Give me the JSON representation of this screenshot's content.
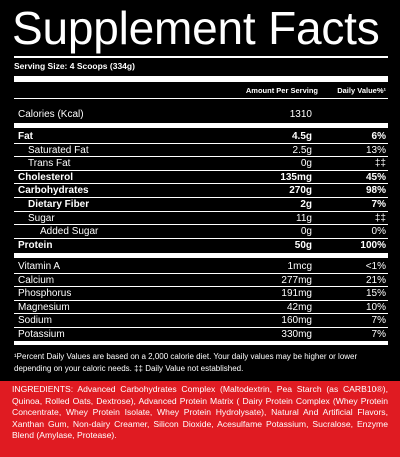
{
  "title": "Supplement Facts",
  "serving_size": "Serving Size: 4 Scoops (334g)",
  "header": {
    "amount": "Amount Per Serving",
    "daily_value": "Daily Value%¹"
  },
  "calories": {
    "label": "Calories (Kcal)",
    "amount": "1310",
    "dv": ""
  },
  "macros": [
    {
      "label": "Fat",
      "amount": "4.5g",
      "dv": "6%",
      "bold": true,
      "indent": 0
    },
    {
      "label": "Saturated Fat",
      "amount": "2.5g",
      "dv": "13%",
      "bold": false,
      "indent": 1
    },
    {
      "label": "Trans Fat",
      "amount": "0g",
      "dv": "‡‡",
      "bold": false,
      "indent": 1
    },
    {
      "label": "Cholesterol",
      "amount": "135mg",
      "dv": "45%",
      "bold": true,
      "indent": 0
    },
    {
      "label": "Carbohydrates",
      "amount": "270g",
      "dv": "98%",
      "bold": true,
      "indent": 0
    },
    {
      "label": "Dietary Fiber",
      "amount": "2g",
      "dv": "7%",
      "bold": true,
      "indent": 1
    },
    {
      "label": "Sugar",
      "amount": "11g",
      "dv": "‡‡",
      "bold": false,
      "indent": 1
    },
    {
      "label": "Added Sugar",
      "amount": "0g",
      "dv": "0%",
      "bold": false,
      "indent": 2
    },
    {
      "label": "Protein",
      "amount": "50g",
      "dv": "100%",
      "bold": true,
      "indent": 0
    }
  ],
  "minerals": [
    {
      "label": "Vitamin A",
      "amount": "1mcg",
      "dv": "<1%"
    },
    {
      "label": "Calcium",
      "amount": "277mg",
      "dv": "21%"
    },
    {
      "label": "Phosphorus",
      "amount": "191mg",
      "dv": "15%"
    },
    {
      "label": "Magnesium",
      "amount": "42mg",
      "dv": "10%"
    },
    {
      "label": "Sodium",
      "amount": "160mg",
      "dv": "7%"
    },
    {
      "label": "Potassium",
      "amount": "330mg",
      "dv": "7%"
    }
  ],
  "footnote": "¹Percent Daily Values are based on a 2,000 calorie diet. Your daily values may be higher or lower depending on your caloric needs. ‡‡ Daily Value not established.",
  "ingredients": {
    "heading": "INGREDIENTS:",
    "text": " Advanced Carbohydrates Complex (Maltodextrin, Pea Starch (as CARB10®), Quinoa, Rolled Oats, Dextrose), Advanced Protein Matrix ( Dairy Protein Complex (Whey Protein Concentrate, Whey Protein Isolate, Whey Protein Hydrolysate), Natural And Artificial Flavors, Xanthan Gum, Non-dairy Creamer, Silicon Dioxide, Acesulfame Potassium, Sucralose, Enzyme Blend (Amylase, Protease)."
  }
}
